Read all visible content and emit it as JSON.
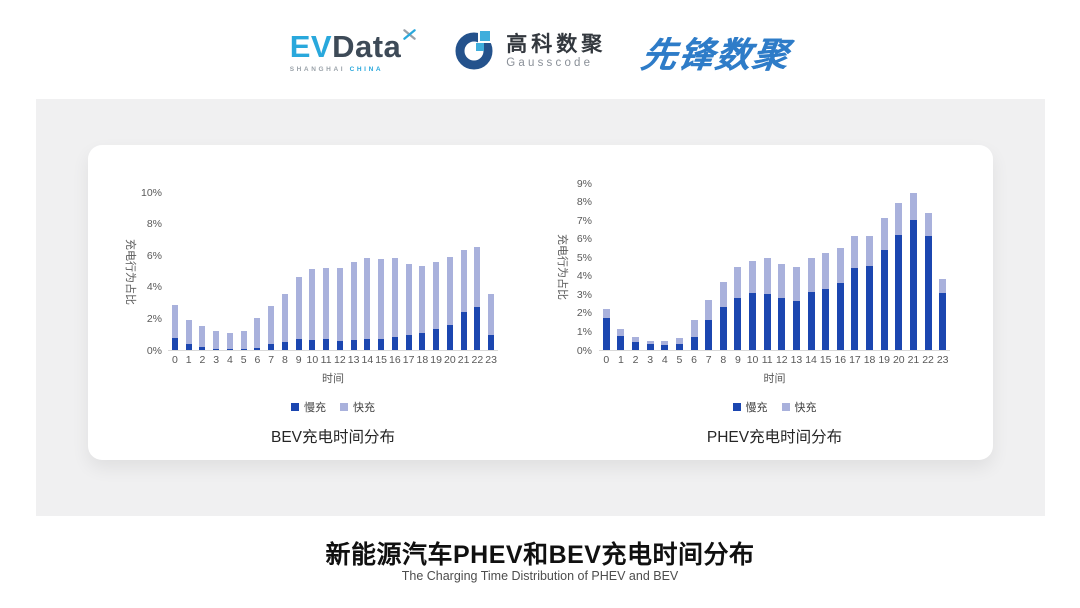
{
  "header": {
    "evdata_logo": {
      "ev": "EV",
      "data": "Data",
      "tagline_left": "SHANGHAI",
      "tagline_right": "CHINA"
    },
    "gausscode_logo": {
      "name_cn": "高科数聚",
      "name_en": "Gausscode"
    },
    "pioneer_logo": {
      "text": "先锋数聚"
    }
  },
  "colors": {
    "slow_charge": "#1b46b0",
    "fast_charge": "#a9b1dc",
    "evdata_cyan": "#29a8dc",
    "evdata_dark": "#3d4a57",
    "gausscode_navy": "#24528c",
    "gausscode_cyan": "#3faedc",
    "pioneer_blue": "#2e7cc8",
    "axis_text": "#595959"
  },
  "chart_data": [
    {
      "type": "bar",
      "stacked": true,
      "title": "BEV充电时间分布",
      "x_label": "时间",
      "y_label": "充电行为占比",
      "legend_position": "bottom",
      "grid": false,
      "categories": [
        0,
        1,
        2,
        3,
        4,
        5,
        6,
        7,
        8,
        9,
        10,
        11,
        12,
        13,
        14,
        15,
        16,
        17,
        18,
        19,
        20,
        21,
        22,
        23
      ],
      "y_axis": {
        "min": 0,
        "max": 10,
        "ticks": [
          0,
          2,
          4,
          6,
          8,
          10
        ],
        "suffix": "%"
      },
      "series": [
        {
          "name": "慢充",
          "color": "#1b46b0",
          "values": [
            0.75,
            0.35,
            0.17,
            0.08,
            0.06,
            0.08,
            0.15,
            0.35,
            0.5,
            0.7,
            0.65,
            0.7,
            0.6,
            0.65,
            0.7,
            0.7,
            0.8,
            0.95,
            1.1,
            1.3,
            1.6,
            2.4,
            2.75,
            0.95
          ]
        },
        {
          "name": "快充",
          "color": "#a9b1dc",
          "values": [
            2.1,
            1.55,
            1.33,
            1.1,
            1.0,
            1.1,
            1.85,
            2.45,
            3.05,
            3.9,
            4.5,
            4.5,
            4.6,
            4.95,
            5.1,
            5.05,
            5.0,
            4.5,
            4.2,
            4.25,
            4.3,
            3.9,
            3.75,
            2.6
          ]
        }
      ]
    },
    {
      "type": "bar",
      "stacked": true,
      "title": "PHEV充电时间分布",
      "x_label": "时间",
      "y_label": "充电行为占比",
      "legend_position": "bottom",
      "grid": false,
      "categories": [
        0,
        1,
        2,
        3,
        4,
        5,
        6,
        7,
        8,
        9,
        10,
        11,
        12,
        13,
        14,
        15,
        16,
        17,
        18,
        19,
        20,
        21,
        22,
        23
      ],
      "y_axis": {
        "min": 0,
        "max": 9,
        "ticks": [
          0,
          1,
          2,
          3,
          4,
          5,
          6,
          7,
          8,
          9
        ],
        "suffix": "%"
      },
      "series": [
        {
          "name": "慢充",
          "color": "#1b46b0",
          "values": [
            1.75,
            0.75,
            0.45,
            0.3,
            0.27,
            0.3,
            0.7,
            1.6,
            2.3,
            2.8,
            3.05,
            3.0,
            2.8,
            2.65,
            3.1,
            3.3,
            3.6,
            4.4,
            4.55,
            5.4,
            6.2,
            7.0,
            6.15,
            3.05
          ]
        },
        {
          "name": "快充",
          "color": "#a9b1dc",
          "values": [
            0.45,
            0.4,
            0.25,
            0.2,
            0.22,
            0.35,
            0.9,
            1.1,
            1.35,
            1.7,
            1.75,
            1.95,
            1.85,
            1.85,
            1.85,
            1.95,
            1.9,
            1.75,
            1.6,
            1.7,
            1.75,
            1.45,
            1.25,
            0.8
          ]
        }
      ]
    }
  ],
  "footer": {
    "title": "新能源汽车PHEV和BEV充电时间分布",
    "subtitle": "The Charging Time Distribution of PHEV and BEV"
  }
}
